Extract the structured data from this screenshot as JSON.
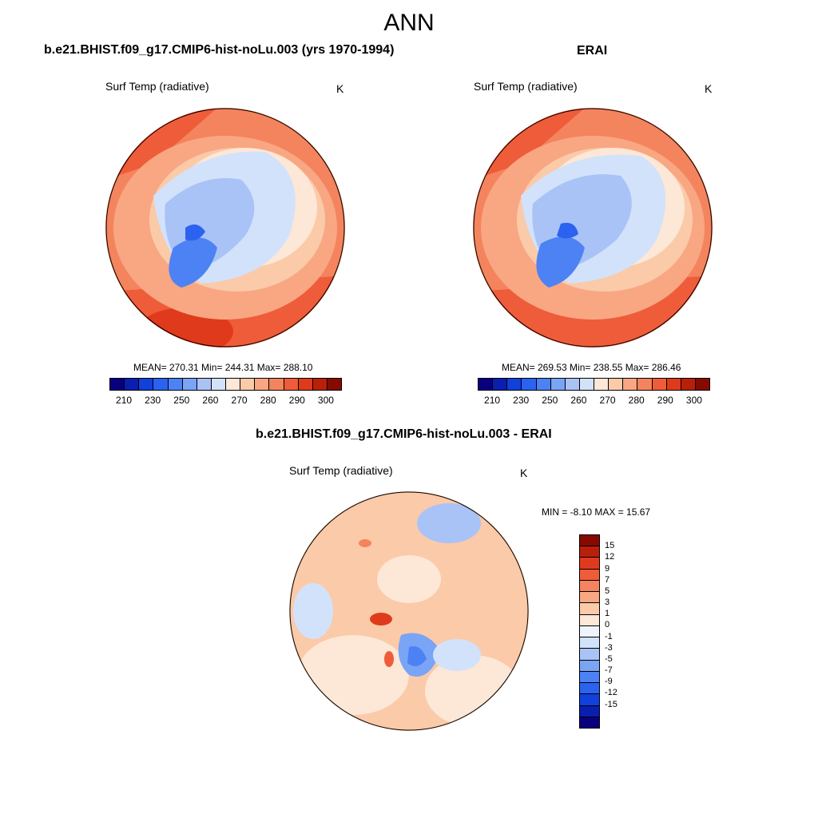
{
  "title": "ANN",
  "panels": [
    {
      "title": "b.e21.BHIST.f09_g17.CMIP6-hist-noLu.003 (yrs 1970-1994)",
      "variable": "Surf Temp (radiative)",
      "units": "K",
      "stats": "MEAN= 270.31  Min= 244.31  Max= 288.10"
    },
    {
      "title": "ERAI",
      "variable": "Surf Temp (radiative)",
      "units": "K",
      "stats": "MEAN= 269.53  Min= 238.55  Max= 286.46"
    },
    {
      "title": "b.e21.BHIST.f09_g17.CMIP6-hist-noLu.003 - ERAI",
      "variable": "Surf Temp (radiative)",
      "units": "K",
      "stats": "MIN =  -8.10 MAX =  15.67"
    }
  ],
  "abs_colorbar": {
    "labels": [
      "210",
      "230",
      "250",
      "260",
      "270",
      "280",
      "290",
      "300"
    ],
    "colors": [
      "#08007f",
      "#0a1eb0",
      "#1240dc",
      "#2b62f0",
      "#4d82f5",
      "#7aa4f5",
      "#a9c3f7",
      "#d2e2fb",
      "#fde7d6",
      "#fbcaa9",
      "#f8a782",
      "#f4845e",
      "#ef5c3a",
      "#e03a1c",
      "#b8200c",
      "#870900"
    ]
  },
  "diff_colorbar": {
    "labels": [
      "15",
      "12",
      "9",
      "7",
      "5",
      "3",
      "1",
      "0",
      "-1",
      "-3",
      "-5",
      "-7",
      "-9",
      "-12",
      "-15"
    ],
    "colors": [
      "#870900",
      "#b8200c",
      "#e03a1c",
      "#ef5c3a",
      "#f4845e",
      "#f8a782",
      "#fbcaa9",
      "#fde7d6",
      "#eef4fd",
      "#d2e2fb",
      "#a9c3f7",
      "#7aa4f5",
      "#4d82f5",
      "#2b62f0",
      "#1240dc",
      "#0a1eb0",
      "#08007f"
    ]
  }
}
